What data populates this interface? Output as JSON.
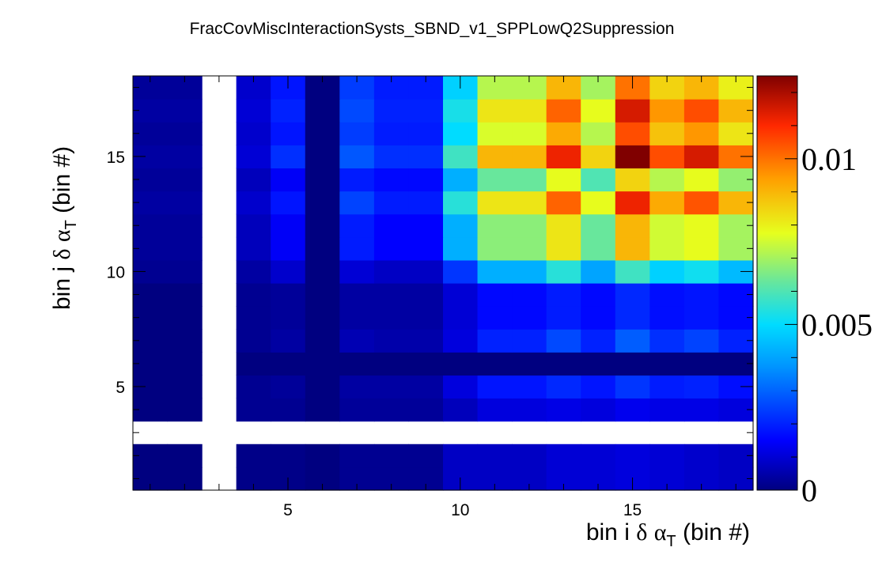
{
  "chart_data": {
    "type": "heatmap",
    "title": "FracCovMiscInteractionSysts_SBND_v1_SPPLowQ2Suppression",
    "xlabel": {
      "prefix": "bin i ",
      "delta": "δ",
      "alpha": "α",
      "sub": "T",
      "suffix": " (bin #)"
    },
    "ylabel": {
      "prefix": "bin j ",
      "delta": "δ",
      "alpha": "α",
      "sub": "T",
      "suffix": " (bin #)"
    },
    "x_range": [
      0.5,
      18.5
    ],
    "y_range": [
      0.5,
      18.5
    ],
    "x_ticks": [
      5,
      10,
      15
    ],
    "y_ticks": [
      5,
      10,
      15
    ],
    "z_range": [
      0,
      0.0125
    ],
    "z_ticks": [
      {
        "value": 0,
        "label": "0"
      },
      {
        "value": 0.005,
        "label": "0.005"
      },
      {
        "value": 0.01,
        "label": "0.01"
      }
    ],
    "empty_bins_note": "bin 3 row and column are empty (white)",
    "values": [
      [
        0.0,
        0.0,
        null,
        0.0001,
        0.0001,
        0.0,
        0.0002,
        0.0002,
        0.0002,
        0.0008,
        0.0008,
        0.0008,
        0.001,
        0.001,
        0.0011,
        0.001,
        0.0009,
        0.0008
      ],
      [
        0.0,
        0.0,
        null,
        0.0001,
        0.0001,
        0.0,
        0.0002,
        0.0002,
        0.0002,
        0.0008,
        0.0008,
        0.0008,
        0.001,
        0.001,
        0.0011,
        0.001,
        0.0009,
        0.0008
      ],
      [
        null,
        null,
        null,
        null,
        null,
        null,
        null,
        null,
        null,
        null,
        null,
        null,
        null,
        null,
        null,
        null,
        null,
        null
      ],
      [
        0.0,
        0.0,
        null,
        0.0002,
        0.0002,
        0.0,
        0.0003,
        0.0003,
        0.0003,
        0.0007,
        0.0011,
        0.0011,
        0.0012,
        0.0011,
        0.0013,
        0.0012,
        0.0012,
        0.0011
      ],
      [
        0.0,
        0.0,
        null,
        0.0002,
        0.0003,
        0.0,
        0.0004,
        0.0004,
        0.0004,
        0.0011,
        0.0018,
        0.0018,
        0.0021,
        0.0018,
        0.0023,
        0.0019,
        0.002,
        0.0017
      ],
      [
        0.0,
        0.0,
        null,
        0.0,
        0.0,
        0.0,
        0.0,
        0.0,
        0.0,
        0.0,
        0.0,
        0.0,
        0.0,
        0.0,
        0.0,
        0.0,
        0.0,
        0.0
      ],
      [
        0.0,
        0.0,
        null,
        0.0002,
        0.0004,
        0.0,
        0.0006,
        0.0005,
        0.0005,
        0.0011,
        0.002,
        0.002,
        0.0026,
        0.002,
        0.0029,
        0.0022,
        0.0025,
        0.002
      ],
      [
        0.0,
        0.0,
        null,
        0.0002,
        0.0003,
        0.0,
        0.0004,
        0.0004,
        0.0004,
        0.001,
        0.0016,
        0.0016,
        0.0019,
        0.0016,
        0.0021,
        0.0017,
        0.0018,
        0.0016
      ],
      [
        0.0,
        0.0,
        null,
        0.0002,
        0.0003,
        0.0,
        0.0004,
        0.0004,
        0.0004,
        0.001,
        0.0016,
        0.0016,
        0.0019,
        0.0016,
        0.0021,
        0.0017,
        0.0018,
        0.0016
      ],
      [
        0.0002,
        0.0002,
        null,
        0.0004,
        0.0009,
        0.0,
        0.001,
        0.0008,
        0.0008,
        0.0023,
        0.0042,
        0.0042,
        0.0055,
        0.004,
        0.0058,
        0.0048,
        0.0052,
        0.0044
      ],
      [
        0.0003,
        0.0003,
        null,
        0.0007,
        0.0014,
        0.0,
        0.0019,
        0.0015,
        0.0015,
        0.0042,
        0.0067,
        0.0067,
        0.0082,
        0.0063,
        0.009,
        0.0075,
        0.0078,
        0.007
      ],
      [
        0.0003,
        0.0003,
        null,
        0.0007,
        0.0014,
        0.0,
        0.0019,
        0.0015,
        0.0015,
        0.0042,
        0.0067,
        0.0067,
        0.0082,
        0.0063,
        0.009,
        0.0075,
        0.0078,
        0.007
      ],
      [
        0.0004,
        0.0004,
        null,
        0.0009,
        0.0018,
        0.0,
        0.0025,
        0.0019,
        0.0019,
        0.0055,
        0.0082,
        0.0082,
        0.0102,
        0.0078,
        0.0112,
        0.0092,
        0.0104,
        0.009
      ],
      [
        0.0003,
        0.0003,
        null,
        0.0007,
        0.0014,
        0.0,
        0.0019,
        0.0016,
        0.0016,
        0.0042,
        0.0063,
        0.0063,
        0.0078,
        0.006,
        0.0085,
        0.0072,
        0.0078,
        0.0068
      ],
      [
        0.0004,
        0.0004,
        null,
        0.001,
        0.0022,
        0.0,
        0.0028,
        0.0022,
        0.0022,
        0.0058,
        0.009,
        0.009,
        0.0112,
        0.0085,
        0.0125,
        0.0105,
        0.0115,
        0.01
      ],
      [
        0.0003,
        0.0003,
        null,
        0.0009,
        0.0018,
        0.0,
        0.0024,
        0.0019,
        0.0019,
        0.005,
        0.0076,
        0.0076,
        0.0092,
        0.0072,
        0.0105,
        0.0088,
        0.0095,
        0.0082
      ],
      [
        0.0004,
        0.0004,
        null,
        0.001,
        0.002,
        0.0,
        0.0026,
        0.002,
        0.002,
        0.0053,
        0.0082,
        0.0082,
        0.0102,
        0.0078,
        0.0115,
        0.0095,
        0.0105,
        0.009
      ],
      [
        0.0003,
        0.0003,
        null,
        0.0009,
        0.0018,
        0.0,
        0.0024,
        0.0019,
        0.0019,
        0.0048,
        0.0072,
        0.0072,
        0.009,
        0.007,
        0.01,
        0.0085,
        0.009,
        0.008
      ]
    ]
  }
}
